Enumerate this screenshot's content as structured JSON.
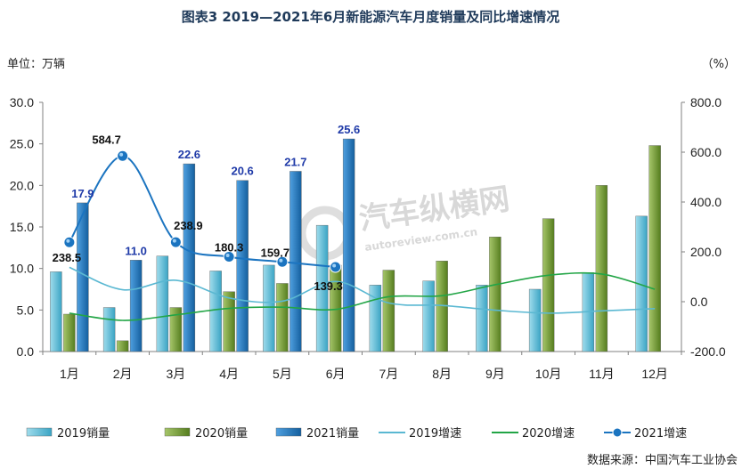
{
  "chart_data": {
    "type": "bar",
    "title": "图表3    2019—2021年6月新能源汽车月度销量及同比增速情况",
    "y_unit_label": "单位：万辆",
    "y2_unit_label": "（%）",
    "categories": [
      "1月",
      "2月",
      "3月",
      "4月",
      "5月",
      "6月",
      "7月",
      "8月",
      "9月",
      "10月",
      "11月",
      "12月"
    ],
    "ylim": [
      0,
      30
    ],
    "yticks": [
      "0.0",
      "5.0",
      "10.0",
      "15.0",
      "20.0",
      "25.0",
      "30.0"
    ],
    "y2lim": [
      -200,
      800
    ],
    "y2ticks": [
      "-200.0",
      "0.0",
      "200.0",
      "400.0",
      "600.0",
      "800.0"
    ],
    "bar_series": [
      {
        "name": "2019销量",
        "color": "#5ab8d2",
        "values": [
          9.6,
          5.3,
          11.5,
          9.7,
          10.4,
          15.2,
          8.0,
          8.5,
          8.0,
          7.5,
          9.5,
          16.3
        ]
      },
      {
        "name": "2020销量",
        "color": "#6f9a2e",
        "values": [
          4.5,
          1.3,
          5.3,
          7.2,
          8.2,
          10.4,
          9.8,
          10.9,
          13.8,
          16.0,
          20.0,
          24.8
        ]
      },
      {
        "name": "2021销量",
        "color": "#1b74c0",
        "values": [
          17.9,
          11.0,
          22.6,
          20.6,
          21.7,
          25.6,
          null,
          null,
          null,
          null,
          null,
          null
        ]
      }
    ],
    "line_series": [
      {
        "name": "2019增速",
        "color": "#5ab8d2",
        "values": [
          138,
          48,
          86,
          15,
          2,
          81,
          -5,
          -15,
          -34,
          -46,
          -37,
          -28
        ]
      },
      {
        "name": "2020增速",
        "color": "#22a546",
        "values": [
          -46,
          -75,
          -53,
          -27,
          -22,
          -31,
          20,
          24,
          68,
          106,
          111,
          50
        ]
      },
      {
        "name": "2021增速",
        "color": "#1b74c0",
        "values": [
          238.5,
          584.7,
          238.9,
          180.3,
          159.7,
          139.3,
          null,
          null,
          null,
          null,
          null,
          null
        ]
      }
    ],
    "data_labels_2021_sales": [
      "17.9",
      "11.0",
      "22.6",
      "20.6",
      "21.7",
      "25.6"
    ],
    "data_labels_2021_growth": [
      "238.5",
      "584.7",
      "238.9",
      "180.3",
      "159.7",
      "139.3"
    ],
    "legend_position": "bottom",
    "grid": false,
    "source": "数据来源：中国汽车工业协会",
    "watermark": "汽车纵横网 autoreview.com.cn"
  }
}
